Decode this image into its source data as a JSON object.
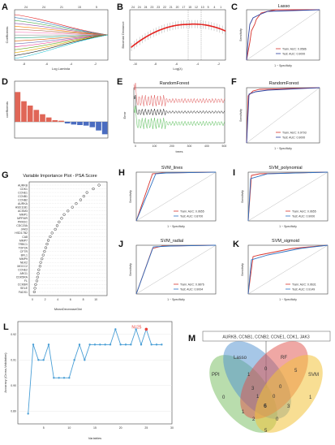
{
  "panels": {
    "A": {
      "label": "A",
      "xlabel": "Log Lambda",
      "ylabel": "Coefficients",
      "x_ticks": [
        "-8",
        "-6",
        "-4",
        "-2"
      ],
      "top_ticks": [
        "24",
        "24",
        "21",
        "15",
        "5"
      ]
    },
    "B": {
      "label": "B",
      "xlabel": "Log(λ)",
      "ylabel": "Binomial Deviance",
      "x_ticks": [
        "-10",
        "-8",
        "-6",
        "-4",
        "-2"
      ],
      "top_ticks": [
        "24",
        "24",
        "24",
        "23",
        "23",
        "22",
        "21",
        "20",
        "17",
        "15",
        "12",
        "10",
        "5",
        "4",
        "1"
      ]
    },
    "C": {
      "label": "C",
      "title": "Lasso",
      "xlabel": "1 − Specificity",
      "ylabel": "Sensitivity",
      "legend": [
        "Train: AUC: 0.9586",
        "Test: AUC: 0.9000"
      ]
    },
    "D": {
      "label": "D",
      "ylabel": "coefficients"
    },
    "E": {
      "label": "E",
      "title": "RandomForest",
      "xlabel": "trees",
      "ylabel": "Error",
      "x_ticks": [
        "0",
        "100",
        "200",
        "300",
        "400",
        "500"
      ]
    },
    "F": {
      "label": "F",
      "title": "RandomForest",
      "xlabel": "1 − Specificity",
      "ylabel": "Sensitivity",
      "legend": [
        "Train: AUC: 0.9793",
        "Test: AUC: 0.9000"
      ]
    },
    "G": {
      "label": "G",
      "title": "Variable Importance Plot - PSA Score",
      "xlabel": "MeanDecreaseGini",
      "x_ticks": [
        "0",
        "2",
        "4",
        "6",
        "8",
        "10"
      ],
      "genes": [
        "AURKB",
        "CDK1",
        "CCNE1",
        "CCNB1",
        "CCNB2",
        "AURKA",
        "HSD11B1",
        "ACSM3",
        "MMP1",
        "MPFMR",
        "PRKDC",
        "CDC20A",
        "JAK3",
        "HSD17B2",
        "CA8",
        "MMP7",
        "TRBC1",
        "TOP2A",
        "CFTR",
        "BFL1",
        "MMP9",
        "NEK2",
        "MGCC2",
        "CCNE2",
        "ARG1",
        "CDK5RA",
        "FL",
        "CCKBR",
        "SELE",
        "FADS1"
      ],
      "values": [
        10.5,
        9.6,
        8.6,
        8.1,
        7.6,
        6.9,
        6.3,
        5.6,
        5.0,
        4.6,
        4.2,
        3.9,
        3.6,
        3.1,
        2.8,
        2.5,
        2.3,
        2.1,
        1.9,
        1.7,
        1.5,
        1.3,
        1.2,
        1.0,
        0.9,
        0.8,
        0.7,
        0.5,
        0.4,
        0.3
      ]
    },
    "H": {
      "label": "H",
      "title": "SVM_lines",
      "xlabel": "1 − Specificity",
      "ylabel": "Sensitivity",
      "legend": [
        "Train: AUC: 0.9655",
        "Test: AUC: 0.8700"
      ]
    },
    "I": {
      "label": "I",
      "title": "SVM_polynomial",
      "xlabel": "1 − Specificity",
      "ylabel": "Sensitivity",
      "legend": [
        "Train: AUC: 0.9655",
        "Test: AUC: 0.9000"
      ]
    },
    "J": {
      "label": "J",
      "title": "SVM_radial",
      "xlabel": "1 − Specificity",
      "ylabel": "Sensitivity",
      "legend": [
        "Train: AUC: 0.9876",
        "Test: AUC: 0.9004"
      ]
    },
    "K": {
      "label": "K",
      "title": "SVM_sigmoid",
      "xlabel": "1 − Specificity",
      "ylabel": "Sensitivity",
      "legend": [
        "Train: AUC: 0.9631",
        "Test: AUC: 0.9149"
      ]
    },
    "L": {
      "label": "L",
      "xlabel": "Variables",
      "ylabel": "Accuracy (Cross-Validation)",
      "annotation": "N=25",
      "x_ticks": [
        "5",
        "10",
        "15",
        "20",
        "25",
        "30"
      ],
      "y_ticks": [
        "0.89",
        "0.90",
        "0.91",
        "0.92"
      ]
    },
    "M": {
      "label": "M",
      "gene_box": "AURKB, CCNB1, CCNB2, CCNE1, CDK1, JAK3",
      "sets": [
        "PPI",
        "Lasso",
        "RF",
        "SVM"
      ],
      "counts": [
        "0",
        "1",
        "5",
        "1",
        "0",
        "3",
        "0",
        "3",
        "6",
        "1",
        "2",
        "0",
        "0",
        "5",
        "1"
      ]
    }
  },
  "chart_data": [
    {
      "type": "line",
      "title": "",
      "xlabel": "Variables",
      "ylabel": "Accuracy (Cross-Validation)",
      "x": [
        2,
        3,
        4,
        5,
        6,
        7,
        8,
        9,
        10,
        11,
        12,
        13,
        14,
        15,
        16,
        17,
        18,
        19,
        20,
        21,
        22,
        23,
        24,
        25,
        26,
        27,
        28
      ],
      "y": [
        0.889,
        0.916,
        0.91,
        0.91,
        0.916,
        0.903,
        0.903,
        0.903,
        0.903,
        0.91,
        0.916,
        0.91,
        0.916,
        0.916,
        0.916,
        0.916,
        0.916,
        0.922,
        0.916,
        0.916,
        0.916,
        0.922,
        0.916,
        0.922,
        0.916,
        0.916,
        0.916
      ],
      "ylim": [
        0.885,
        0.925
      ],
      "xlim": [
        0,
        30
      ]
    },
    {
      "type": "bar",
      "ylabel": "coefficients",
      "values": [
        0.55,
        0.38,
        0.3,
        0.22,
        0.14,
        0.08,
        0.03,
        0.02,
        -0.03,
        -0.05,
        -0.06,
        -0.07,
        -0.1,
        -0.16,
        -0.23
      ],
      "ylim": [
        -0.3,
        0.75
      ]
    }
  ],
  "colors": {
    "train": "#d7332d",
    "test": "#2b3f9e",
    "bar_pos": "#e06657",
    "bar_neg": "#4a6cc0",
    "line_l": "#4a9fd6",
    "accent_red": "#e8413b"
  }
}
